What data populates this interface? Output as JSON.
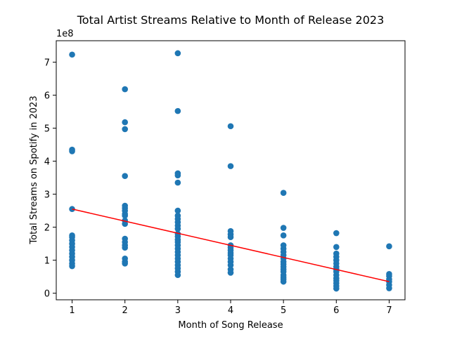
{
  "chart_data": {
    "type": "scatter",
    "title": "Total Artist Streams Relative to Month of Release 2023",
    "xlabel": "Month of Song Release",
    "ylabel": "Total Streams on Spotify in 2023",
    "y_multiplier_label": "1e8",
    "y_multiplier": 100000000,
    "xlim": [
      0.7,
      7.3
    ],
    "ylim": [
      -0.2,
      7.65
    ],
    "x_ticks": [
      1,
      2,
      3,
      4,
      5,
      6,
      7
    ],
    "y_ticks": [
      0,
      1,
      2,
      3,
      4,
      5,
      6,
      7
    ],
    "grid": false,
    "point_color": "#1f77b4",
    "trend_color": "#ff0000",
    "trendline": {
      "x": [
        1,
        7
      ],
      "y": [
        2.55,
        0.35
      ]
    },
    "points": [
      [
        1,
        7.23
      ],
      [
        1,
        4.35
      ],
      [
        1,
        4.3
      ],
      [
        1,
        2.55
      ],
      [
        1,
        1.75
      ],
      [
        1,
        1.7
      ],
      [
        1,
        1.6
      ],
      [
        1,
        1.5
      ],
      [
        1,
        1.4
      ],
      [
        1,
        1.3
      ],
      [
        1,
        1.2
      ],
      [
        1,
        1.1
      ],
      [
        1,
        1.0
      ],
      [
        1,
        0.9
      ],
      [
        1,
        0.82
      ],
      [
        2,
        6.18
      ],
      [
        2,
        5.18
      ],
      [
        2,
        4.97
      ],
      [
        2,
        3.55
      ],
      [
        2,
        2.65
      ],
      [
        2,
        2.58
      ],
      [
        2,
        2.5
      ],
      [
        2,
        2.4
      ],
      [
        2,
        2.35
      ],
      [
        2,
        2.2
      ],
      [
        2,
        2.1
      ],
      [
        2,
        1.65
      ],
      [
        2,
        1.55
      ],
      [
        2,
        1.45
      ],
      [
        2,
        1.38
      ],
      [
        2,
        1.05
      ],
      [
        2,
        0.95
      ],
      [
        2,
        0.9
      ],
      [
        3,
        7.27
      ],
      [
        3,
        5.52
      ],
      [
        3,
        3.63
      ],
      [
        3,
        3.57
      ],
      [
        3,
        3.35
      ],
      [
        3,
        2.5
      ],
      [
        3,
        2.35
      ],
      [
        3,
        2.25
      ],
      [
        3,
        2.15
      ],
      [
        3,
        2.05
      ],
      [
        3,
        1.95
      ],
      [
        3,
        1.8
      ],
      [
        3,
        1.72
      ],
      [
        3,
        1.62
      ],
      [
        3,
        1.55
      ],
      [
        3,
        1.45
      ],
      [
        3,
        1.35
      ],
      [
        3,
        1.25
      ],
      [
        3,
        1.15
      ],
      [
        3,
        1.05
      ],
      [
        3,
        0.95
      ],
      [
        3,
        0.85
      ],
      [
        3,
        0.75
      ],
      [
        3,
        0.65
      ],
      [
        3,
        0.55
      ],
      [
        4,
        5.06
      ],
      [
        4,
        3.85
      ],
      [
        4,
        1.88
      ],
      [
        4,
        1.78
      ],
      [
        4,
        1.7
      ],
      [
        4,
        1.45
      ],
      [
        4,
        1.38
      ],
      [
        4,
        1.3
      ],
      [
        4,
        1.22
      ],
      [
        4,
        1.15
      ],
      [
        4,
        1.05
      ],
      [
        4,
        0.95
      ],
      [
        4,
        0.85
      ],
      [
        4,
        0.72
      ],
      [
        4,
        0.62
      ],
      [
        5,
        3.04
      ],
      [
        5,
        1.98
      ],
      [
        5,
        1.75
      ],
      [
        5,
        1.45
      ],
      [
        5,
        1.35
      ],
      [
        5,
        1.25
      ],
      [
        5,
        1.15
      ],
      [
        5,
        1.05
      ],
      [
        5,
        0.95
      ],
      [
        5,
        0.88
      ],
      [
        5,
        0.8
      ],
      [
        5,
        0.72
      ],
      [
        5,
        0.65
      ],
      [
        5,
        0.55
      ],
      [
        5,
        0.48
      ],
      [
        5,
        0.42
      ],
      [
        5,
        0.35
      ],
      [
        6,
        1.82
      ],
      [
        6,
        1.4
      ],
      [
        6,
        1.2
      ],
      [
        6,
        1.1
      ],
      [
        6,
        1.0
      ],
      [
        6,
        0.9
      ],
      [
        6,
        0.8
      ],
      [
        6,
        0.72
      ],
      [
        6,
        0.65
      ],
      [
        6,
        0.55
      ],
      [
        6,
        0.45
      ],
      [
        6,
        0.38
      ],
      [
        6,
        0.3
      ],
      [
        6,
        0.22
      ],
      [
        6,
        0.14
      ],
      [
        7,
        1.42
      ],
      [
        7,
        0.58
      ],
      [
        7,
        0.52
      ],
      [
        7,
        0.42
      ],
      [
        7,
        0.35
      ],
      [
        7,
        0.25
      ],
      [
        7,
        0.15
      ]
    ]
  }
}
